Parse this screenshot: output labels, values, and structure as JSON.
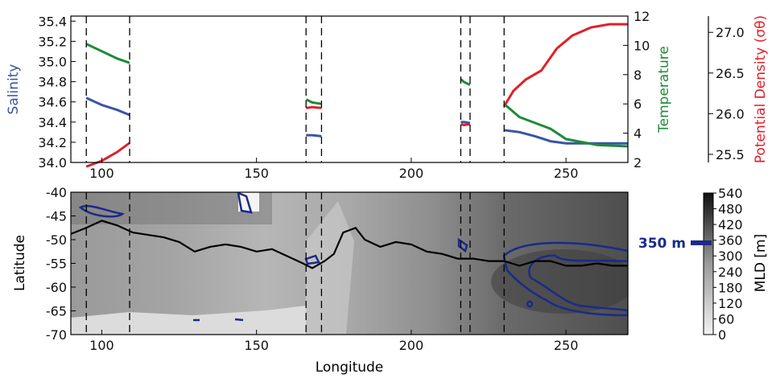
{
  "chart_data": [
    {
      "type": "line",
      "panel": "profiles",
      "xlim": [
        90,
        270
      ],
      "xticks": [
        100,
        150,
        200,
        250
      ],
      "axes": {
        "salinity": {
          "label": "Salinity",
          "ylim": [
            34.0,
            35.45
          ],
          "ticks": [
            "34.0",
            "34.2",
            "34.4",
            "34.6",
            "34.8",
            "35.0",
            "35.2",
            "35.4"
          ],
          "color": "#3a54a4",
          "side": "left"
        },
        "temperature": {
          "label": "Temperature",
          "ylim": [
            2,
            12
          ],
          "ticks": [
            "2",
            "4",
            "6",
            "8",
            "10",
            "12"
          ],
          "color": "#1e8a3a",
          "side": "right"
        },
        "density": {
          "label": "Potential Density (σθ)",
          "ylim": [
            25.4,
            27.2
          ],
          "ticks": [
            "25.5",
            "26.0",
            "26.5",
            "27.0"
          ],
          "color": "#e0202a",
          "side": "right-outer"
        }
      },
      "dashed_lines_x": [
        95,
        109,
        166,
        171,
        216,
        219,
        230
      ],
      "series": [
        {
          "axis": "salinity",
          "segments": [
            {
              "x": [
                95,
                100,
                105,
                109
              ],
              "y": [
                34.64,
                34.57,
                34.52,
                34.47
              ]
            },
            {
              "x": [
                166,
                168,
                171
              ],
              "y": [
                34.27,
                34.27,
                34.26
              ]
            },
            {
              "x": [
                216,
                217,
                219
              ],
              "y": [
                34.4,
                34.4,
                34.39
              ]
            },
            {
              "x": [
                230,
                235,
                240,
                245,
                250,
                260,
                270
              ],
              "y": [
                34.32,
                34.3,
                34.26,
                34.21,
                34.19,
                34.19,
                34.19
              ]
            }
          ]
        },
        {
          "axis": "temperature",
          "segments": [
            {
              "x": [
                95,
                100,
                105,
                109
              ],
              "y": [
                10.1,
                9.6,
                9.1,
                8.8
              ]
            },
            {
              "x": [
                166,
                168,
                171
              ],
              "y": [
                6.3,
                6.1,
                6.0
              ]
            },
            {
              "x": [
                216,
                217,
                219
              ],
              "y": [
                7.7,
                7.5,
                7.3
              ]
            },
            {
              "x": [
                230,
                235,
                240,
                245,
                250,
                260,
                270
              ],
              "y": [
                6.0,
                5.1,
                4.7,
                4.3,
                3.6,
                3.2,
                3.1
              ]
            }
          ]
        },
        {
          "axis": "density",
          "segments": [
            {
              "x": [
                95,
                100,
                105,
                109
              ],
              "y": [
                25.35,
                25.42,
                25.53,
                25.64
              ]
            },
            {
              "x": [
                166,
                168,
                171
              ],
              "y": [
                26.07,
                26.08,
                26.07
              ]
            },
            {
              "x": [
                216,
                217,
                219
              ],
              "y": [
                25.87,
                25.86,
                25.87
              ]
            },
            {
              "x": [
                230,
                233,
                237,
                242,
                247,
                252,
                258,
                264,
                270
              ],
              "y": [
                26.09,
                26.28,
                26.42,
                26.53,
                26.8,
                26.96,
                27.06,
                27.1,
                27.1
              ]
            }
          ]
        }
      ]
    },
    {
      "type": "heatmap",
      "panel": "mixed-layer-depth",
      "xlabel": "Longitude",
      "ylabel": "Latitude",
      "xlim": [
        90,
        270
      ],
      "ylim": [
        -70,
        -40
      ],
      "xticks": [
        100,
        150,
        200,
        250
      ],
      "yticks": [
        -40,
        -45,
        -50,
        -55,
        -60,
        -65,
        -70
      ],
      "colorbar": {
        "label": "MLD [m]",
        "min": 0,
        "max": 540,
        "ticks": [
          0,
          60,
          120,
          180,
          240,
          300,
          360,
          420,
          480,
          540
        ]
      },
      "contour": {
        "value": 350,
        "label": "350 m",
        "color": "#1a2a8a"
      },
      "front_line": {
        "x": [
          90,
          95,
          100,
          105,
          110,
          115,
          120,
          125,
          130,
          135,
          140,
          145,
          150,
          155,
          160,
          165,
          168,
          172,
          175,
          178,
          182,
          185,
          190,
          195,
          200,
          205,
          210,
          215,
          220,
          225,
          230,
          235,
          240,
          245,
          250,
          255,
          260,
          265,
          270
        ],
        "y": [
          -48.8,
          -47.5,
          -46.0,
          -47.0,
          -48.5,
          -49.0,
          -49.5,
          -50.5,
          -52.5,
          -51.5,
          -51.0,
          -51.5,
          -52.5,
          -52.0,
          -53.5,
          -55.0,
          -56.0,
          -54.5,
          -53.0,
          -48.5,
          -47.5,
          -50.0,
          -51.5,
          -50.5,
          -51.0,
          -52.5,
          -53.0,
          -54.0,
          -54.0,
          -54.5,
          -54.5,
          -55.5,
          -54.5,
          -54.5,
          -55.5,
          -55.5,
          -55.0,
          -55.5,
          -55.5
        ]
      },
      "dashed_lines_x": [
        95,
        109,
        166,
        171,
        216,
        219,
        230
      ]
    }
  ]
}
